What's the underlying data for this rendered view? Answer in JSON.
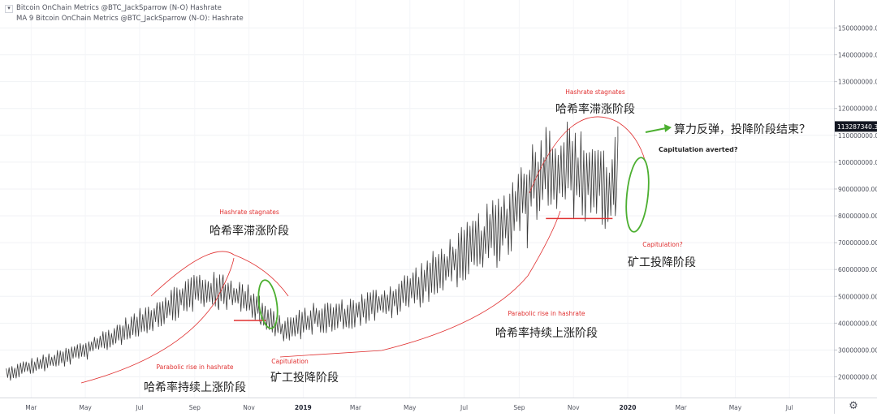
{
  "legend": {
    "series1": "Bitcoin OnChain Metrics @BTC_JackSparrow (N-O) Hashrate",
    "series2": "MA 9 Bitcoin OnChain Metrics @BTC_JackSparrow (N-O): Hashrate",
    "collapse_icon": "chevron-down-icon"
  },
  "settings_icon": "gear-icon",
  "colors": {
    "line": "#3a3a3a",
    "annotation_red": "#e03030",
    "annotation_green": "#4caf30",
    "axis_text": "#50535e",
    "price_label_bg": "#131722"
  },
  "chart_data": {
    "type": "line",
    "title": "",
    "x_axis_ticks": [
      "Mar",
      "May",
      "Jul",
      "Sep",
      "Nov",
      "2019",
      "Mar",
      "May",
      "Jul",
      "Sep",
      "Nov",
      "2020",
      "Mar",
      "May",
      "Jul"
    ],
    "y_axis_ticks": [
      "20000000.00",
      "30000000.00",
      "40000000.00",
      "50000000.00",
      "60000000.00",
      "70000000.00",
      "80000000.00",
      "90000000.00",
      "100000000.00",
      "110000000.00",
      "120000000.00",
      "130000000.00",
      "140000000.00",
      "150000000.00"
    ],
    "y_unit": "hashrate",
    "last_value_label": "113287340.37",
    "ylim": [
      15000000,
      157000000
    ],
    "trend_knots": [
      [
        "2018-02-01",
        21000000
      ],
      [
        "2018-03-01",
        24000000
      ],
      [
        "2018-04-01",
        26500000
      ],
      [
        "2018-05-01",
        30000000
      ],
      [
        "2018-06-01",
        35000000
      ],
      [
        "2018-07-01",
        40000000
      ],
      [
        "2018-08-01",
        46000000
      ],
      [
        "2018-09-01",
        52000000
      ],
      [
        "2018-10-01",
        52000000
      ],
      [
        "2018-10-20",
        50000000
      ],
      [
        "2018-11-10",
        47000000
      ],
      [
        "2018-11-25",
        41000000
      ],
      [
        "2018-12-10",
        37000000
      ],
      [
        "2018-12-25",
        39000000
      ],
      [
        "2019-01-15",
        42000000
      ],
      [
        "2019-02-15",
        43000000
      ],
      [
        "2019-03-15",
        46000000
      ],
      [
        "2019-04-15",
        49000000
      ],
      [
        "2019-05-15",
        55000000
      ],
      [
        "2019-06-15",
        62000000
      ],
      [
        "2019-07-15",
        69000000
      ],
      [
        "2019-08-15",
        76000000
      ],
      [
        "2019-09-01",
        85000000
      ],
      [
        "2019-09-15",
        92000000
      ],
      [
        "2019-10-01",
        97000000
      ],
      [
        "2019-10-20",
        97000000
      ],
      [
        "2019-11-10",
        95000000
      ],
      [
        "2019-12-01",
        93000000
      ],
      [
        "2019-12-10",
        88000000
      ],
      [
        "2019-12-22",
        100000000
      ]
    ],
    "oscillation_amplitude": [
      [
        "2018-02-01",
        2500000
      ],
      [
        "2018-06-01",
        4000000
      ],
      [
        "2018-09-01",
        7000000
      ],
      [
        "2018-12-01",
        5000000
      ],
      [
        "2019-04-01",
        6000000
      ],
      [
        "2019-07-01",
        10000000
      ],
      [
        "2019-09-01",
        14000000
      ],
      [
        "2019-11-01",
        16000000
      ],
      [
        "2019-12-22",
        14000000
      ]
    ],
    "spikes": [
      [
        "2018-09-28",
        45000000
      ],
      [
        "2018-10-03",
        58000000
      ],
      [
        "2018-11-13",
        41000000
      ],
      [
        "2019-09-10",
        68000000
      ],
      [
        "2019-10-01",
        113000000
      ],
      [
        "2019-10-25",
        115000000
      ],
      [
        "2019-12-18",
        80000000
      ],
      [
        "2019-12-21",
        113287340.37
      ]
    ],
    "x_start": "2018-01-25",
    "x_end": "2020-08-20",
    "phase_labels": {
      "stagnation_2018_en": "Hashrate stagnates",
      "stagnation_2018_zh": "哈希率滞涨阶段",
      "rise_2018_en": "Parabolic rise in hashrate",
      "rise_2018_zh": "哈希率持续上涨阶段",
      "capitulation_2018_en": "Capitulation",
      "capitulation_2018_zh": "矿工投降阶段",
      "rise_2019_en": "Parabolic rise in hashrate",
      "rise_2019_zh": "哈希率持续上涨阶段",
      "stagnation_2019_en": "Hashrate stagnates",
      "stagnation_2019_zh": "哈希率滞涨阶段",
      "capitulation_2019_en": "Capitulation?",
      "capitulation_2019_zh": "矿工投降阶段",
      "rebound_zh": "算力反弹，投降阶段结束？",
      "rebound_en": "Capitulation averted?"
    },
    "support_levels": [
      {
        "from": "2018-10-15",
        "to": "2018-11-20",
        "value": 41000000
      },
      {
        "from": "2019-10-01",
        "to": "2019-12-15",
        "value": 79000000
      }
    ],
    "grid": true,
    "legend": "top-left"
  }
}
